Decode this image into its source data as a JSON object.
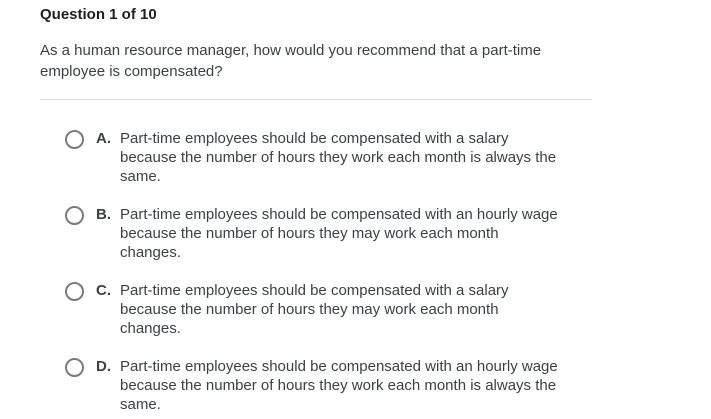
{
  "header": {
    "title": "Question 1 of 10"
  },
  "question": {
    "text": "As a human resource manager, how would you recommend that a part-time\nemployee is compensated?"
  },
  "options": [
    {
      "letter": "A.",
      "text": "Part-time employees should be compensated with a salary\nbecause the number of hours they work each month is always the\nsame.",
      "selected": false
    },
    {
      "letter": "B.",
      "text": "Part-time employees should be compensated with an hourly wage\nbecause the number of hours they may work each month\nchanges.",
      "selected": false
    },
    {
      "letter": "C.",
      "text": "Part-time employees should be compensated with a salary\nbecause the number of hours they may work each month\nchanges.",
      "selected": false
    },
    {
      "letter": "D.",
      "text": "Part-time employees should be compensated with an hourly wage\nbecause the number of hours they work each month is always the\nsame.",
      "selected": false
    }
  ],
  "colors": {
    "background": "#ffffff",
    "heading_text": "#1f1f1f",
    "body_text": "#3c4043",
    "divider": "#dadada",
    "radio_border": "#7a7a7a"
  }
}
